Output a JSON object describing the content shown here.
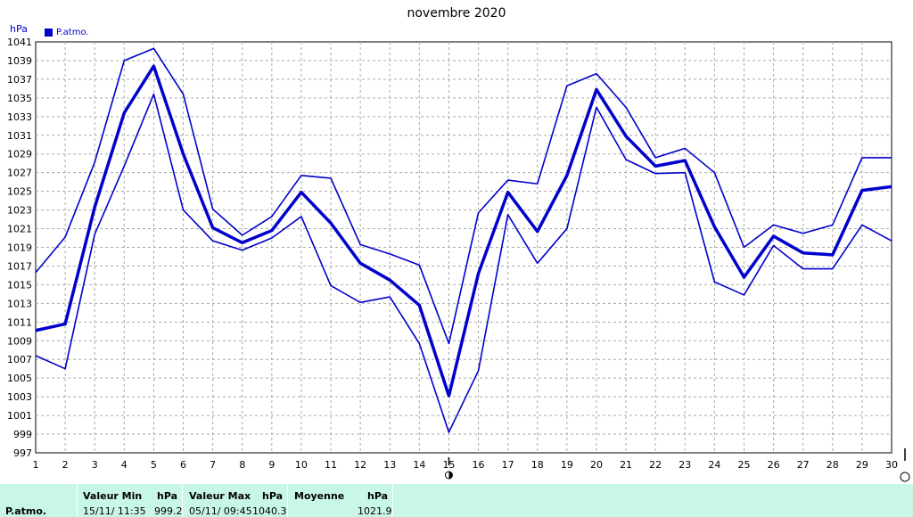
{
  "chart_data": {
    "type": "line",
    "title": "novembre 2020",
    "ylabel": "hPa",
    "ylim": [
      997,
      1041
    ],
    "yticks": [
      997,
      999,
      1001,
      1003,
      1005,
      1007,
      1009,
      1011,
      1013,
      1015,
      1017,
      1019,
      1021,
      1023,
      1025,
      1027,
      1029,
      1031,
      1033,
      1035,
      1037,
      1039,
      1041
    ],
    "x": [
      1,
      2,
      3,
      4,
      5,
      6,
      7,
      8,
      9,
      10,
      11,
      12,
      13,
      14,
      15,
      16,
      17,
      18,
      19,
      20,
      21,
      22,
      23,
      24,
      25,
      26,
      27,
      28,
      29,
      30
    ],
    "xlim": [
      1,
      30
    ],
    "legend": [
      "P.atmo."
    ],
    "grid": true,
    "colors": {
      "series": "#0000cc",
      "grid": "#aaaaaa",
      "stats_bg": "#c8f6e8"
    },
    "series": [
      {
        "name": "P.atmo.",
        "role": "max",
        "values": [
          1016.3,
          1020.1,
          1028.1,
          1039.0,
          1040.3,
          1035.4,
          1023.1,
          1020.3,
          1022.3,
          1026.7,
          1026.4,
          1019.3,
          1018.3,
          1017.1,
          1008.7,
          1022.7,
          1026.2,
          1025.8,
          1036.3,
          1037.6,
          1034.0,
          1028.6,
          1029.6,
          1027.0,
          1019.0,
          1021.4,
          1020.5,
          1021.4,
          1028.6,
          1028.6
        ]
      },
      {
        "name": "P.atmo.",
        "role": "avg",
        "values": [
          1010.1,
          1010.8,
          1023.3,
          1033.4,
          1038.4,
          1029.0,
          1021.1,
          1019.5,
          1020.8,
          1024.9,
          1021.6,
          1017.3,
          1015.5,
          1012.8,
          1003.1,
          1016.2,
          1024.9,
          1020.7,
          1026.7,
          1035.9,
          1030.9,
          1027.7,
          1028.3,
          1021.2,
          1015.8,
          1020.2,
          1018.4,
          1018.2,
          1025.1,
          1025.5
        ]
      },
      {
        "name": "P.atmo.",
        "role": "min",
        "values": [
          1007.4,
          1006.0,
          1020.4,
          1027.7,
          1035.4,
          1023.0,
          1019.7,
          1018.7,
          1020.0,
          1022.3,
          1014.9,
          1013.1,
          1013.7,
          1008.7,
          999.2,
          1005.8,
          1022.5,
          1017.3,
          1021.0,
          1034.0,
          1028.4,
          1026.9,
          1027.0,
          1015.3,
          1013.9,
          1019.2,
          1016.7,
          1016.7,
          1021.4,
          1019.7
        ]
      }
    ]
  },
  "stats": {
    "row_label": "P.atmo.",
    "min": {
      "header": "Valeur Min",
      "unit": "hPa",
      "datetime": "15/11/  11:35",
      "value": "999.2"
    },
    "max": {
      "header": "Valeur Max",
      "unit": "hPa",
      "datetime": "05/11/  09:45",
      "value": "1040.3"
    },
    "avg": {
      "header": "Moyenne",
      "unit": "hPa",
      "value": "1021.9"
    }
  },
  "markers": {
    "moon_day": 15,
    "moon_icon": "moon-phase-icon",
    "now_icon": "current-marker-icon"
  }
}
